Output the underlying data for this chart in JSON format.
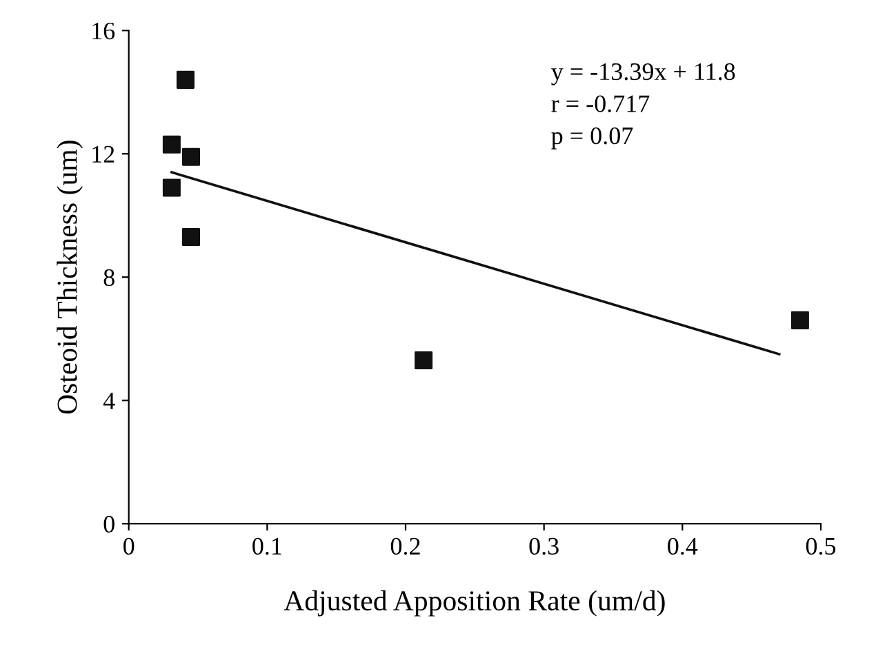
{
  "chart_data": {
    "type": "scatter",
    "xlabel": "Adjusted Apposition Rate (um/d)",
    "ylabel": "Osteoid Thickness (um)",
    "xlim": [
      0,
      0.5
    ],
    "xticks": [
      0,
      0.1,
      0.2,
      0.3,
      0.4,
      0.5
    ],
    "ylim": [
      0,
      16
    ],
    "yticks": [
      0,
      4,
      8,
      12,
      16
    ],
    "grid": false,
    "legend": false,
    "marker": "square",
    "series": [
      {
        "color": "#111111",
        "x": [
          0.031,
          0.041,
          0.045,
          0.031,
          0.045,
          0.213,
          0.485
        ],
        "values": [
          12.3,
          14.4,
          11.9,
          10.9,
          9.3,
          5.3,
          6.6
        ]
      },
      {
        "type": "line",
        "color": "#111111",
        "x": [
          0.031,
          0.47
        ],
        "values": [
          11.4,
          5.5
        ],
        "line_style": "solid",
        "marker": "none"
      }
    ],
    "annotations": [
      "y = -13.39x + 11.8",
      "r = -0.717",
      "p = 0.07"
    ]
  }
}
